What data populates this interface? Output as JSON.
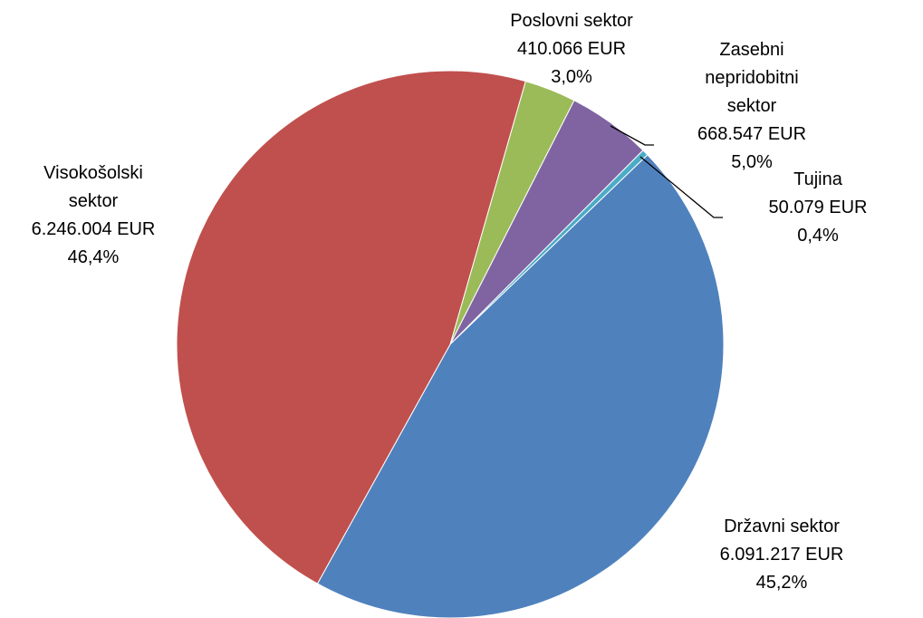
{
  "chart_data": {
    "type": "pie",
    "categories": [
      "Poslovni sektor",
      "Zasebni\nnepridobitni\nsektor",
      "Tujina",
      "Državni sektor",
      "Visokošolski\nsektor"
    ],
    "amounts": [
      410066,
      668547,
      50079,
      6091217,
      6246004
    ],
    "amount_labels": [
      "410.066 EUR",
      "668.547 EUR",
      "50.079 EUR",
      "6.091.217 EUR",
      "6.246.004 EUR"
    ],
    "values": [
      3.0,
      5.0,
      0.4,
      45.2,
      46.4
    ],
    "value_labels": [
      "3,0%",
      "5,0%",
      "0,4%",
      "45,2%",
      "46,4%"
    ],
    "colors": [
      "#9bbb59",
      "#8064a2",
      "#4bacc6",
      "#4f81bd",
      "#c0504d"
    ]
  }
}
